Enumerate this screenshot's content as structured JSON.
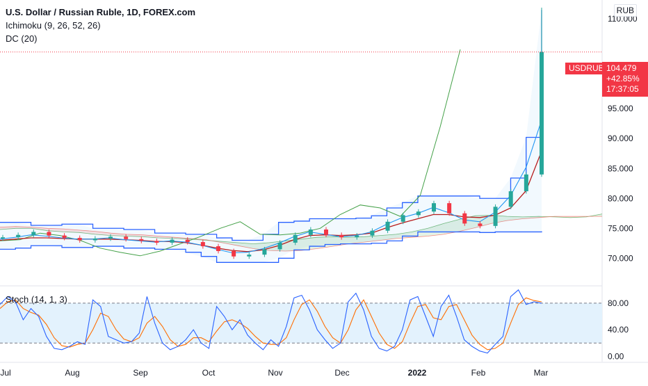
{
  "header": {
    "title": "U.S. Dollar / Russian Ruble, 1D, FOREX.com",
    "indicators": [
      "Ichimoku (9, 26, 52, 26)",
      "DC (20)"
    ],
    "stoch_label": "Stoch (14, 1, 3)",
    "unit": "RUB"
  },
  "price_tag": {
    "symbol": "USDRUB",
    "price": "104.479",
    "change": "+42.85%",
    "countdown": "17:37:05"
  },
  "colors": {
    "up": "#26a69a",
    "down": "#f23645",
    "donchian": "#2962ff",
    "tenkan": "#2196f3",
    "kijun": "#b71c1c",
    "lagging": "#43a047",
    "stoch_k": "#2962ff",
    "stoch_d": "#ff6d00",
    "stoch_band": "#e3f2fd"
  },
  "chart_data": [
    {
      "type": "candlestick",
      "title": "U.S. Dollar / Russian Ruble, 1D, FOREX.com",
      "y_axis_ticks": [
        "70.000",
        "75.000",
        "80.000",
        "85.000",
        "90.000",
        "95.000",
        "110.000"
      ],
      "ylim": [
        65.5,
        112
      ],
      "x_axis_ticks": [
        "Jul",
        "Aug",
        "Sep",
        "Oct",
        "Nov",
        "Dec",
        "2022",
        "Feb",
        "Mar"
      ],
      "last_price": 104.479,
      "close_series": {
        "name": "USDRUB",
        "points": [
          [
            "Jul",
            73.5
          ],
          [
            "Jul",
            73.9
          ],
          [
            "Jul",
            74.4
          ],
          [
            "Jul",
            73.8
          ],
          [
            "Aug",
            73.4
          ],
          [
            "Aug",
            73.0
          ],
          [
            "Aug",
            73.3
          ],
          [
            "Aug",
            73.6
          ],
          [
            "Sep",
            73.2
          ],
          [
            "Sep",
            72.9
          ],
          [
            "Sep",
            72.6
          ],
          [
            "Sep",
            73.1
          ],
          [
            "Oct",
            72.7
          ],
          [
            "Oct",
            72.0
          ],
          [
            "Oct",
            71.2
          ],
          [
            "Oct",
            70.3
          ],
          [
            "Nov",
            70.6
          ],
          [
            "Nov",
            71.5
          ],
          [
            "Nov",
            72.6
          ],
          [
            "Nov",
            73.9
          ],
          [
            "Dec",
            74.8
          ],
          [
            "Dec",
            73.9
          ],
          [
            "Dec",
            73.5
          ],
          [
            "Dec",
            73.8
          ],
          [
            "2022",
            74.6
          ],
          [
            "2022",
            76.1
          ],
          [
            "2022",
            77.2
          ],
          [
            "2022",
            77.8
          ],
          [
            "Feb",
            79.2
          ],
          [
            "Feb",
            77.5
          ],
          [
            "Feb",
            75.8
          ],
          [
            "Feb",
            75.4
          ],
          [
            "Feb",
            78.6
          ],
          [
            "Feb",
            81.2
          ],
          [
            "Mar",
            84.0
          ],
          [
            "Mar",
            104.479
          ]
        ]
      },
      "overlays": [
        {
          "name": "Donchian upper",
          "values": [
            76,
            76,
            75.5,
            75.5,
            75.7,
            75.7,
            75,
            75,
            74.8,
            74.8,
            74.2,
            74.2,
            74,
            74,
            73.4,
            73,
            73,
            74,
            76,
            76.2,
            76.6,
            76.6,
            76.6,
            76.7,
            77.1,
            78.4,
            79.3,
            80.4,
            80.4,
            80.4,
            80.4,
            80,
            80,
            83.4,
            90.2,
            111.5
          ]
        },
        {
          "name": "Donchian lower",
          "values": [
            71.5,
            71.7,
            72.1,
            72.1,
            71.8,
            71.8,
            72,
            72,
            71.7,
            71.7,
            71.5,
            71.5,
            71,
            70.3,
            69.3,
            69.3,
            69.3,
            69.3,
            70,
            71.4,
            72,
            72.3,
            72.4,
            72.4,
            72.5,
            72.9,
            73.7,
            74.4,
            74.4,
            74.4,
            74.4,
            74.3,
            74.4,
            74.4,
            74.4,
            74.5
          ]
        },
        {
          "name": "Tenkan",
          "values": [
            73.2,
            73.5,
            73.9,
            73.7,
            73.4,
            73.2,
            73.2,
            73.4,
            73.1,
            72.9,
            72.7,
            72.9,
            72.7,
            72.2,
            71.5,
            70.9,
            71,
            71.6,
            72.5,
            73.6,
            74.4,
            74,
            73.6,
            73.8,
            74.4,
            75.7,
            76.8,
            77.5,
            78.5,
            77.6,
            76.4,
            76.1,
            77.7,
            80.5,
            85.2,
            93.1
          ]
        },
        {
          "name": "Kijun",
          "values": [
            73.0,
            73.2,
            73.4,
            73.4,
            73.3,
            73.2,
            73.2,
            73.2,
            73.1,
            73.0,
            72.8,
            72.8,
            72.6,
            72.2,
            71.7,
            71.3,
            71.1,
            71.4,
            72.1,
            73.1,
            73.8,
            73.9,
            73.8,
            73.9,
            74.2,
            75.1,
            75.9,
            76.6,
            77.3,
            77.3,
            76.9,
            76.8,
            77.2,
            78.4,
            81.3,
            87.9
          ]
        },
        {
          "name": "Lagging span",
          "values": [
            72.9,
            73.1,
            74.2,
            73.8,
            73.0,
            71.7,
            71.0,
            70.4,
            71.2,
            72.4,
            73.6,
            75.0,
            76.1,
            74.0,
            73.9,
            74.2,
            75.0,
            77.3,
            78.9,
            78.4,
            77.0,
            80.5,
            92.0,
            104.9
          ]
        },
        {
          "name": "Senkou A",
          "values": [
            74.8,
            75.0,
            75.0,
            74.6,
            74.4,
            74.3,
            74.0,
            73.8,
            73.7,
            73.6,
            73.4,
            73.3,
            73.2,
            73.0,
            72.8,
            72.6,
            72.4,
            72.6,
            72.9,
            73.2,
            73.5,
            73.6,
            73.5,
            73.6,
            73.8,
            74.0,
            74.4,
            75.0,
            75.8,
            76.5,
            77.1,
            77.2,
            77.0,
            76.9,
            77.0,
            76.9,
            76.8,
            76.9,
            77.4
          ]
        },
        {
          "name": "Senkou B",
          "values": [
            75.2,
            75.3,
            75.2,
            75.0,
            74.9,
            74.7,
            74.5,
            74.2,
            74.0,
            73.9,
            73.7,
            73.5,
            73.3,
            73.1,
            72.6,
            72.1,
            71.6,
            71.3,
            71.2,
            71.3,
            71.6,
            72.0,
            72.4,
            72.7,
            73.0,
            73.3,
            73.5,
            73.7,
            74.0,
            74.5,
            75.1,
            75.8,
            76.3,
            76.6,
            76.8,
            77.0,
            77.0,
            77.0,
            77.0
          ]
        }
      ]
    },
    {
      "type": "line",
      "title": "Stoch (14, 1, 3)",
      "y_axis_ticks": [
        "0.00",
        "40.00",
        "80.00"
      ],
      "ylim": [
        -8,
        104
      ],
      "bands": [
        20,
        80
      ],
      "x_axis_ticks": [
        "Jul",
        "Aug",
        "Sep",
        "Oct",
        "Nov",
        "Dec",
        "2022",
        "Feb",
        "Mar"
      ],
      "series": [
        {
          "name": "%K",
          "values": [
            78,
            90,
            82,
            55,
            72,
            60,
            30,
            12,
            10,
            15,
            22,
            18,
            85,
            75,
            30,
            25,
            20,
            22,
            35,
            90,
            50,
            20,
            10,
            15,
            25,
            40,
            20,
            12,
            75,
            60,
            40,
            55,
            32,
            20,
            10,
            25,
            15,
            45,
            88,
            92,
            70,
            40,
            25,
            12,
            20,
            82,
            95,
            70,
            30,
            12,
            8,
            15,
            40,
            85,
            90,
            60,
            30,
            75,
            92,
            60,
            25,
            15,
            8,
            5,
            18,
            30,
            90,
            100,
            78,
            82,
            80
          ]
        },
        {
          "name": "%D",
          "values": [
            72,
            82,
            85,
            72,
            66,
            62,
            48,
            28,
            16,
            14,
            18,
            20,
            40,
            65,
            60,
            40,
            26,
            22,
            28,
            50,
            60,
            45,
            25,
            15,
            18,
            28,
            28,
            22,
            38,
            52,
            55,
            50,
            42,
            30,
            20,
            18,
            18,
            28,
            55,
            78,
            85,
            68,
            45,
            28,
            20,
            40,
            70,
            85,
            60,
            35,
            18,
            12,
            22,
            50,
            75,
            78,
            58,
            55,
            75,
            78,
            55,
            32,
            18,
            10,
            12,
            20,
            50,
            78,
            88,
            84,
            82
          ]
        }
      ]
    }
  ]
}
